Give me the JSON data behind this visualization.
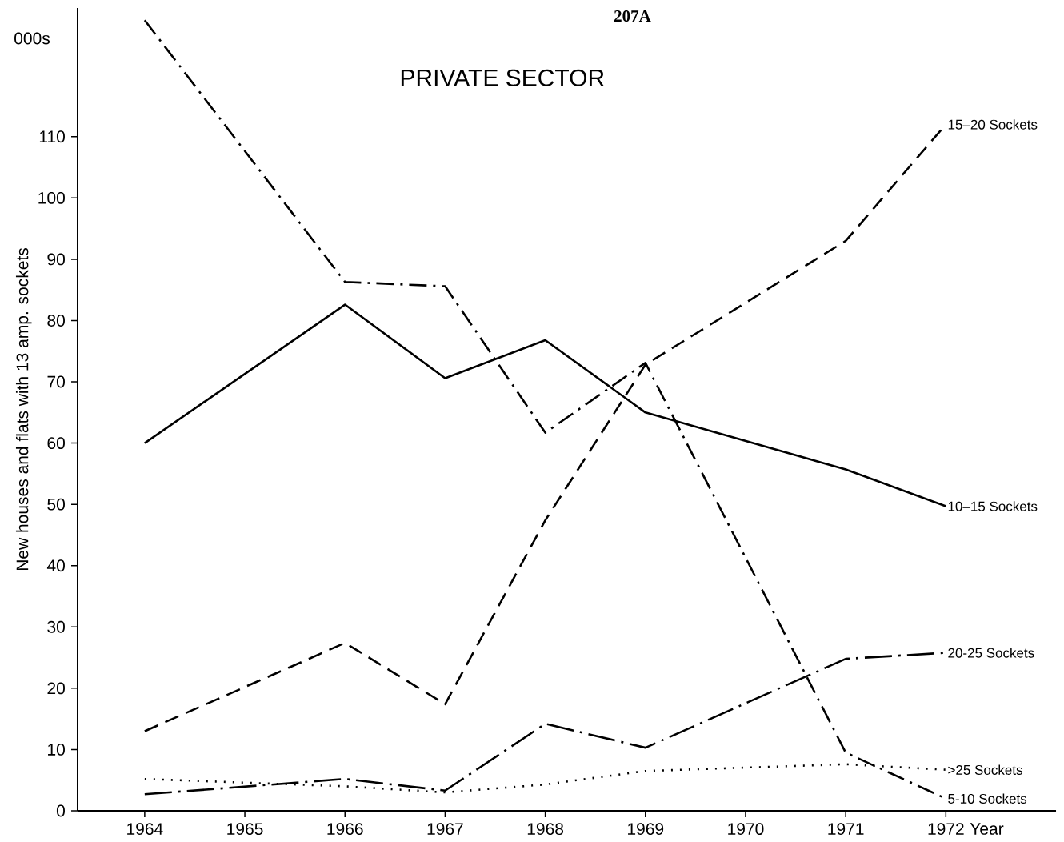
{
  "chart_data": {
    "type": "line",
    "title": "PRIVATE SECTOR",
    "xlabel": "Year",
    "ylabel": "New houses and flats with 13 amp. sockets",
    "annotations": [
      "000s",
      "207A"
    ],
    "xlim": [
      1963.33,
      1973.1
    ],
    "ylim": [
      0,
      131
    ],
    "xticks": [
      1964,
      1965,
      1966,
      1967,
      1968,
      1969,
      1970,
      1971,
      1972
    ],
    "yticks": [
      0,
      10,
      20,
      30,
      40,
      50,
      60,
      70,
      80,
      90,
      100,
      110
    ],
    "grid": false,
    "legend": false,
    "x": [
      1964,
      1966,
      1967,
      1968,
      1969,
      1971,
      1972
    ],
    "series": [
      {
        "name": "15–20 Sockets",
        "color": "#000000",
        "line_style": "dashed",
        "values": [
          13,
          27.4,
          17.4,
          47.4,
          72.8,
          93,
          112
        ]
      },
      {
        "name": "10–15 Sockets",
        "color": "#000000",
        "line_style": "solid",
        "values": [
          60,
          82.6,
          70.6,
          76.8,
          65,
          55.7,
          49.7
        ]
      },
      {
        "name": "20-25 Sockets",
        "color": "#000000",
        "line_style": "longdashdot",
        "values": [
          2.7,
          5.2,
          3.3,
          14.2,
          10.3,
          24.8,
          25.8
        ]
      },
      {
        "name": ">25 Sockets",
        "color": "#000000",
        "line_style": "dotted",
        "values": [
          5.2,
          4,
          3,
          4.3,
          6.5,
          7.6,
          6.7
        ]
      },
      {
        "name": "5-10 Sockets",
        "color": "#000000",
        "line_style": "dashdot",
        "values": [
          129,
          86.3,
          85.6,
          61.7,
          73.1,
          9.5,
          2
        ]
      }
    ]
  }
}
